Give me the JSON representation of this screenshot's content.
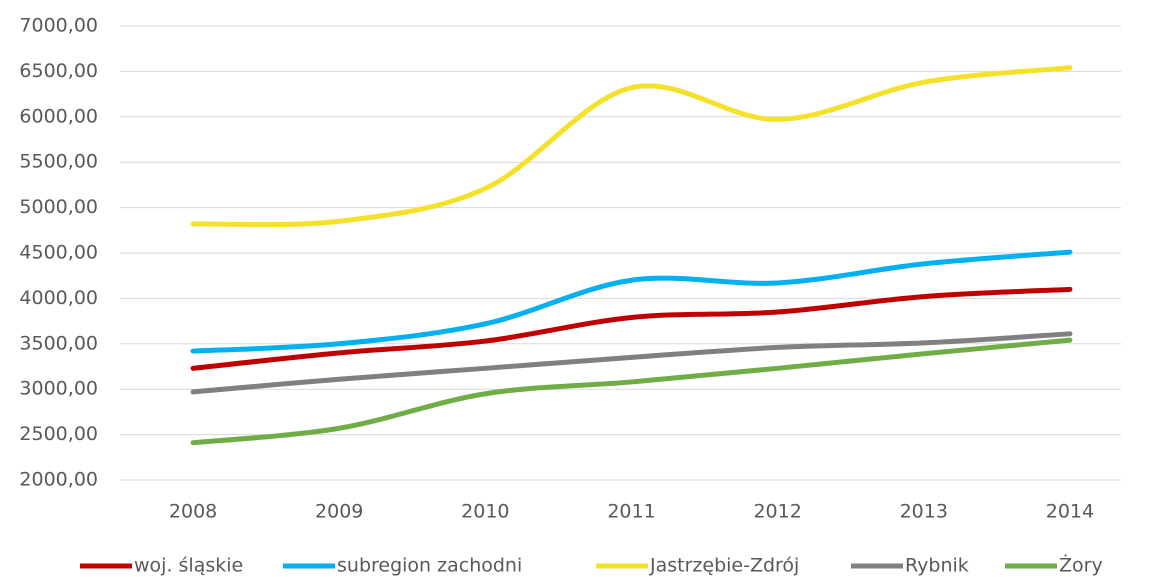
{
  "chart_data": {
    "type": "line",
    "categories": [
      "2008",
      "2009",
      "2010",
      "2011",
      "2012",
      "2013",
      "2014"
    ],
    "series": [
      {
        "name": "woj. śląskie",
        "color": "#c00000",
        "values": [
          3230,
          3400,
          3530,
          3790,
          3850,
          4020,
          4100
        ]
      },
      {
        "name": "subregion zachodni",
        "color": "#00b0f0",
        "values": [
          3420,
          3500,
          3720,
          4200,
          4170,
          4380,
          4510
        ]
      },
      {
        "name": "Jastrzębie-Zdrój",
        "color": "#f5e12a",
        "values": [
          4820,
          4850,
          5210,
          6320,
          5970,
          6380,
          6540
        ]
      },
      {
        "name": "Rybnik",
        "color": "#808080",
        "values": [
          2970,
          3110,
          3230,
          3350,
          3460,
          3510,
          3610
        ]
      },
      {
        "name": "Żory",
        "color": "#70ad47",
        "values": [
          2410,
          2570,
          2950,
          3080,
          3230,
          3390,
          3540
        ]
      }
    ],
    "ylim": [
      2000,
      7000
    ],
    "yticks": [
      {
        "value": 2000,
        "label": "2000,00"
      },
      {
        "value": 2500,
        "label": "2500,00"
      },
      {
        "value": 3000,
        "label": "3000,00"
      },
      {
        "value": 3500,
        "label": "3500,00"
      },
      {
        "value": 4000,
        "label": "4000,00"
      },
      {
        "value": 4500,
        "label": "4500,00"
      },
      {
        "value": 5000,
        "label": "5000,00"
      },
      {
        "value": 5500,
        "label": "5500,00"
      },
      {
        "value": 6000,
        "label": "6000,00"
      },
      {
        "value": 6500,
        "label": "6500,00"
      },
      {
        "value": 7000,
        "label": "7000,00"
      }
    ],
    "grid": true,
    "legend": "bottom"
  }
}
